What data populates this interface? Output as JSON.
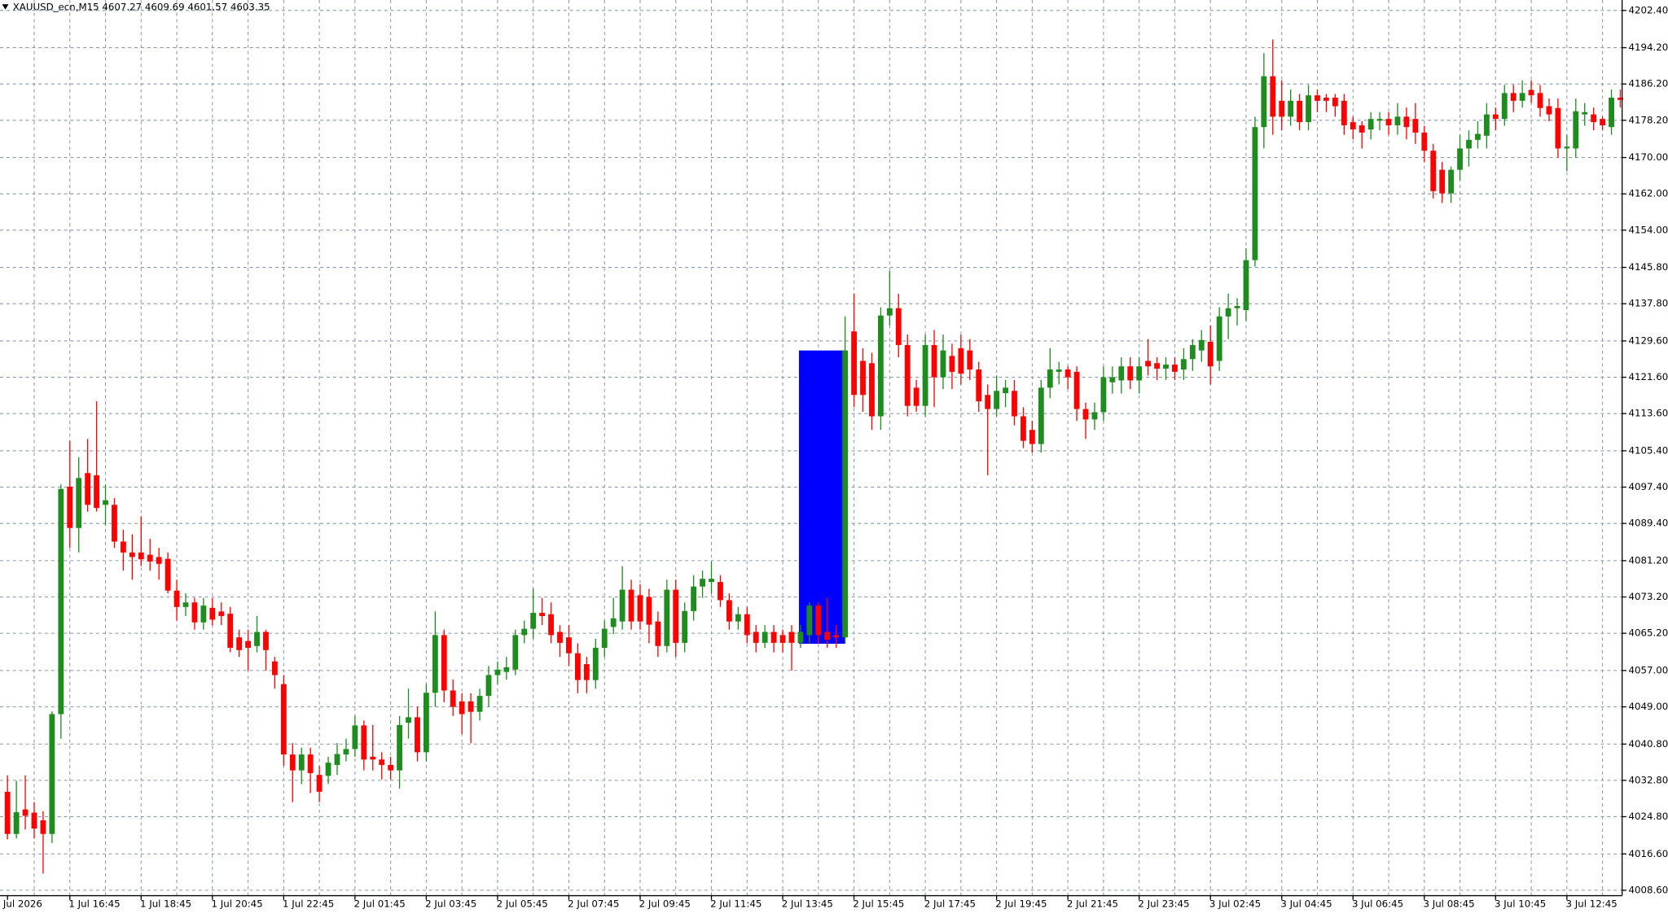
{
  "chart_data": {
    "type": "candlestick",
    "title": "XAUUSD_ecn,M15  4607.27 4609.69 4601.57 4603.35",
    "up_color": "#1e8c1e",
    "down_color": "#ff0000",
    "grid": true,
    "ylim": [
      4007.4,
      4204.7
    ],
    "yticks": [
      {
        "value": 4202.4,
        "label": "4202.40"
      },
      {
        "value": 4194.2,
        "label": "4194.20"
      },
      {
        "value": 4186.2,
        "label": "4186.20"
      },
      {
        "value": 4178.2,
        "label": "4178.20"
      },
      {
        "value": 4170,
        "label": "4170.00"
      },
      {
        "value": 4162,
        "label": "4162.00"
      },
      {
        "value": 4154,
        "label": "4154.00"
      },
      {
        "value": 4145.8,
        "label": "4145.80"
      },
      {
        "value": 4137.8,
        "label": "4137.80"
      },
      {
        "value": 4129.6,
        "label": "4129.60"
      },
      {
        "value": 4121.6,
        "label": "4121.60"
      },
      {
        "value": 4113.6,
        "label": "4113.60"
      },
      {
        "value": 4105.4,
        "label": "4105.40"
      },
      {
        "value": 4097.4,
        "label": "4097.40"
      },
      {
        "value": 4089.4,
        "label": "4089.40"
      },
      {
        "value": 4081.2,
        "label": "4081.20"
      },
      {
        "value": 4073.2,
        "label": "4073.20"
      },
      {
        "value": 4065.2,
        "label": "4065.20"
      },
      {
        "value": 4057,
        "label": "4057.00"
      },
      {
        "value": 4049,
        "label": "4049.00"
      },
      {
        "value": 4040.8,
        "label": "4040.80"
      },
      {
        "value": 4032.8,
        "label": "4032.80"
      },
      {
        "value": 4024.8,
        "label": "4024.80"
      },
      {
        "value": 4016.6,
        "label": "4016.60"
      },
      {
        "value": 4008.6,
        "label": "4008.60"
      }
    ],
    "x": [
      "Jul 2026",
      null,
      null,
      null,
      null,
      null,
      null,
      "1 Jul 16:45",
      null,
      null,
      null,
      null,
      null,
      null,
      null,
      "1 Jul 18:45",
      null,
      null,
      null,
      null,
      null,
      null,
      null,
      "1 Jul 20:45",
      null,
      null,
      null,
      null,
      null,
      null,
      null,
      "1 Jul 22:45",
      null,
      null,
      null,
      null,
      null,
      null,
      null,
      "2 Jul 01:45",
      null,
      null,
      null,
      null,
      null,
      null,
      null,
      "2 Jul 03:45",
      null,
      null,
      null,
      null,
      null,
      null,
      null,
      "2 Jul 05:45",
      null,
      null,
      null,
      null,
      null,
      null,
      null,
      "2 Jul 07:45",
      null,
      null,
      null,
      null,
      null,
      null,
      null,
      "2 Jul 09:45",
      null,
      null,
      null,
      null,
      null,
      null,
      null,
      "2 Jul 11:45",
      null,
      null,
      null,
      null,
      null,
      null,
      null,
      "2 Jul 13:45",
      null,
      null,
      null,
      null,
      null,
      null,
      null,
      "2 Jul 15:45",
      null,
      null,
      null,
      null,
      null,
      null,
      null,
      "2 Jul 17:45",
      null,
      null,
      null,
      null,
      null,
      null,
      null,
      "2 Jul 19:45",
      null,
      null,
      null,
      null,
      null,
      null,
      null,
      "2 Jul 21:45",
      null,
      null,
      null,
      null,
      null,
      null,
      null,
      "2 Jul 23:45",
      null,
      null,
      null,
      null,
      null,
      null,
      null,
      "3 Jul 02:45",
      null,
      null,
      null,
      null,
      null,
      null,
      null,
      "3 Jul 04:45",
      null,
      null,
      null,
      null,
      null,
      null,
      null,
      "3 Jul 06:45",
      null,
      null,
      null,
      null,
      null,
      null,
      null,
      "3 Jul 08:45",
      null,
      null,
      null,
      null,
      null,
      null,
      null,
      "3 Jul 10:45",
      null,
      null,
      null,
      null,
      null,
      null,
      null,
      "3 Jul 12:45",
      null,
      null,
      null,
      null,
      null,
      null
    ],
    "candles": [
      [
        4030.3,
        4033.9,
        4019.8,
        4021
      ],
      [
        4021,
        4032.7,
        4020,
        4025.8
      ],
      [
        4026.4,
        4033.9,
        4022,
        4025
      ],
      [
        4025.7,
        4028,
        4020,
        4022.2
      ],
      [
        4024,
        4026,
        4012.3,
        4021
      ],
      [
        4021,
        4048,
        4019,
        4047.4
      ],
      [
        4047.4,
        4098,
        4042,
        4097
      ],
      [
        4097.5,
        4107.6,
        4084,
        4088.4
      ],
      [
        4088.4,
        4104,
        4083,
        4099.4
      ],
      [
        4100.5,
        4108,
        4092,
        4093.5
      ],
      [
        4100,
        4116.3,
        4092,
        4092.8
      ],
      [
        4093.5,
        4098,
        4089,
        4094.5
      ],
      [
        4093.5,
        4095,
        4084,
        4085.4
      ],
      [
        4085.4,
        4088,
        4079,
        4083
      ],
      [
        4083,
        4087,
        4077,
        4082
      ],
      [
        4083,
        4091,
        4080,
        4081.5
      ],
      [
        4082.5,
        4086,
        4079,
        4081
      ],
      [
        4082,
        4084,
        4077,
        4080.5
      ],
      [
        4081.6,
        4083,
        4074,
        4074.6
      ],
      [
        4074.6,
        4077,
        4068,
        4071
      ],
      [
        4071,
        4074,
        4069,
        4072
      ],
      [
        4072,
        4073,
        4066,
        4067.6
      ],
      [
        4067.6,
        4073,
        4066,
        4071.3
      ],
      [
        4070.8,
        4073,
        4067,
        4068.2
      ],
      [
        4070,
        4072,
        4067,
        4069
      ],
      [
        4069.5,
        4071,
        4061,
        4062
      ],
      [
        4064.3,
        4066,
        4060,
        4061.5
      ],
      [
        4063.5,
        4066,
        4057,
        4062
      ],
      [
        4062.4,
        4069,
        4061,
        4065.5
      ],
      [
        4065.5,
        4066,
        4057,
        4061.5
      ],
      [
        4059,
        4060,
        4053,
        4056
      ],
      [
        4054,
        4056,
        4036,
        4038.5
      ],
      [
        4038.5,
        4041,
        4028,
        4035
      ],
      [
        4035,
        4040,
        4032,
        4038.5
      ],
      [
        4038.5,
        4040,
        4030,
        4034.4
      ],
      [
        4034,
        4036,
        4028,
        4030.3
      ],
      [
        4033.8,
        4038,
        4032,
        4036.7
      ],
      [
        4036.2,
        4041,
        4034,
        4038.6
      ],
      [
        4038.5,
        4042,
        4037,
        4039.7
      ],
      [
        4039.7,
        4047,
        4038,
        4044.9
      ],
      [
        4044.9,
        4046,
        4035,
        4037.4
      ],
      [
        4038,
        4045,
        4035,
        4037.4
      ],
      [
        4037.4,
        4039,
        4033,
        4036.2
      ],
      [
        4036.2,
        4038,
        4033,
        4035
      ],
      [
        4035,
        4047,
        4031,
        4045
      ],
      [
        4045.5,
        4053,
        4042,
        4046.7
      ],
      [
        4046.7,
        4049,
        4037,
        4039
      ],
      [
        4039,
        4054,
        4037,
        4052.1
      ],
      [
        4052.1,
        4070,
        4049,
        4064.8
      ],
      [
        4064.8,
        4066,
        4050,
        4052.6
      ],
      [
        4052.6,
        4055,
        4047,
        4049
      ],
      [
        4050.2,
        4052,
        4043,
        4047.4
      ],
      [
        4050.2,
        4052,
        4041,
        4047.9
      ],
      [
        4047.9,
        4053,
        4046,
        4051.4
      ],
      [
        4051.4,
        4058,
        4049,
        4056
      ],
      [
        4056,
        4059,
        4054,
        4057.2
      ],
      [
        4056.7,
        4060,
        4055,
        4057.7
      ],
      [
        4057.2,
        4066,
        4056,
        4064.8
      ],
      [
        4064.8,
        4068,
        4063,
        4066.2
      ],
      [
        4066.2,
        4075,
        4064,
        4069.7
      ],
      [
        4069.7,
        4073,
        4067,
        4069
      ],
      [
        4069.4,
        4072,
        4063,
        4064.8
      ],
      [
        4065.5,
        4067,
        4060,
        4063.1
      ],
      [
        4064.3,
        4067,
        4058,
        4060.8
      ],
      [
        4060.8,
        4063,
        4052,
        4054.9
      ],
      [
        4058.4,
        4060,
        4052,
        4054.9
      ],
      [
        4054.9,
        4064,
        4053,
        4062
      ],
      [
        4062,
        4068,
        4060,
        4066.2
      ],
      [
        4066.6,
        4073,
        4065,
        4068.5
      ],
      [
        4067.8,
        4080,
        4066,
        4074.8
      ],
      [
        4074.8,
        4077,
        4066,
        4067.8
      ],
      [
        4073.6,
        4076,
        4066,
        4067.8
      ],
      [
        4073.2,
        4075,
        4063,
        4067.1
      ],
      [
        4067.8,
        4070,
        4060,
        4062.4
      ],
      [
        4062.4,
        4077,
        4061,
        4074.8
      ],
      [
        4074.8,
        4077,
        4060,
        4063.1
      ],
      [
        4063.1,
        4072,
        4061,
        4070.1
      ],
      [
        4070.1,
        4078,
        4068,
        4075.5
      ],
      [
        4075.5,
        4079,
        4073,
        4077.2
      ],
      [
        4076.5,
        4081,
        4074,
        4077.2
      ],
      [
        4076.5,
        4078,
        4071,
        4072.5
      ],
      [
        4072.5,
        4074,
        4066,
        4067.8
      ],
      [
        4067.8,
        4071,
        4066,
        4069.4
      ],
      [
        4069.4,
        4071,
        4063,
        4064.8
      ],
      [
        4065.5,
        4067,
        4061,
        4063.1
      ],
      [
        4063.1,
        4067,
        4062,
        4065.5
      ],
      [
        4065.5,
        4067,
        4061,
        4063.1
      ],
      [
        4064.8,
        4066,
        4061,
        4063.1
      ],
      [
        4065.5,
        4067,
        4057,
        4063.1
      ],
      [
        4063.1,
        4067,
        4062,
        4065.5
      ],
      [
        4064.8,
        4072,
        4063,
        4071.3
      ],
      [
        4071.3,
        4072,
        4063,
        4064.8
      ],
      [
        4065.5,
        4073,
        4062,
        4063.8
      ],
      [
        4064.8,
        4067,
        4062,
        4064.3
      ],
      [
        4064.3,
        4135,
        4063,
        4127.5
      ],
      [
        4131.7,
        4140,
        4115,
        4117.7
      ],
      [
        4125.2,
        4128,
        4114,
        4117.7
      ],
      [
        4124.7,
        4127,
        4110,
        4113
      ],
      [
        4113,
        4137,
        4110,
        4135.2
      ],
      [
        4135.2,
        4145,
        4133,
        4136.8
      ],
      [
        4136.8,
        4140,
        4126,
        4128.7
      ],
      [
        4128.7,
        4131,
        4113,
        4115.3
      ],
      [
        4119.3,
        4121,
        4114,
        4115.3
      ],
      [
        4115.3,
        4131,
        4113,
        4128.7
      ],
      [
        4128.7,
        4132,
        4115,
        4121.6
      ],
      [
        4121.6,
        4131,
        4119,
        4127.5
      ],
      [
        4126.3,
        4129,
        4119,
        4122.8
      ],
      [
        4128,
        4131,
        4120,
        4122.4
      ],
      [
        4127.5,
        4130,
        4121,
        4123.3
      ],
      [
        4123.3,
        4125,
        4114,
        4116.3
      ],
      [
        4117.7,
        4120,
        4100,
        4114.6
      ],
      [
        4114.6,
        4122,
        4113,
        4118.6
      ],
      [
        4118.1,
        4121,
        4115,
        4119.3
      ],
      [
        4118.6,
        4121,
        4111,
        4113
      ],
      [
        4113,
        4115,
        4106,
        4107.6
      ],
      [
        4110,
        4112,
        4105,
        4106.9
      ],
      [
        4106.9,
        4121,
        4105,
        4119.3
      ],
      [
        4119.3,
        4128,
        4117,
        4123.3
      ],
      [
        4122.8,
        4125,
        4120,
        4123.3
      ],
      [
        4123.3,
        4124,
        4119,
        4121.6
      ],
      [
        4122.8,
        4124,
        4112,
        4114.6
      ],
      [
        4114.6,
        4116,
        4108,
        4112.3
      ],
      [
        4112.3,
        4116,
        4110,
        4113.9
      ],
      [
        4113.9,
        4124,
        4112,
        4121.6
      ],
      [
        4120.5,
        4124,
        4118,
        4121.6
      ],
      [
        4120.9,
        4126,
        4118,
        4124
      ],
      [
        4124,
        4126,
        4119,
        4120.9
      ],
      [
        4120.9,
        4126,
        4118,
        4124
      ],
      [
        4125.2,
        4130,
        4122,
        4124
      ],
      [
        4124.7,
        4126,
        4121,
        4123.5
      ],
      [
        4123.5,
        4126,
        4121,
        4124.4
      ],
      [
        4124.4,
        4126,
        4121,
        4122.8
      ],
      [
        4123.3,
        4128,
        4121,
        4125.6
      ],
      [
        4125.6,
        4130,
        4123,
        4128.7
      ],
      [
        4127.5,
        4132,
        4125,
        4129.8
      ],
      [
        4129.4,
        4133,
        4120,
        4124
      ],
      [
        4125.2,
        4137,
        4123,
        4135
      ],
      [
        4135,
        4140,
        4130,
        4136.8
      ],
      [
        4136.8,
        4139,
        4133,
        4137.3
      ],
      [
        4136.4,
        4150,
        4134,
        4147.4
      ],
      [
        4147.4,
        4179,
        4146,
        4176.7
      ],
      [
        4176.7,
        4193,
        4172,
        4187.9
      ],
      [
        4187.9,
        4196,
        4175,
        4179
      ],
      [
        4182.5,
        4187,
        4176,
        4179
      ],
      [
        4179,
        4185,
        4177,
        4182.5
      ],
      [
        4182.5,
        4184,
        4176,
        4177.8
      ],
      [
        4177.8,
        4186,
        4176,
        4183.7
      ],
      [
        4183.7,
        4185,
        4180,
        4182.5
      ],
      [
        4183.2,
        4184,
        4180,
        4182.5
      ],
      [
        4183.2,
        4184,
        4179,
        4181.3
      ],
      [
        4182.5,
        4184,
        4175,
        4177.1
      ],
      [
        4177.8,
        4179,
        4174,
        4176.2
      ],
      [
        4177.1,
        4178,
        4172,
        4175.5
      ],
      [
        4176.2,
        4180,
        4174,
        4178.5
      ],
      [
        4178.1,
        4180,
        4176,
        4178.5
      ],
      [
        4178.5,
        4180,
        4175,
        4177.1
      ],
      [
        4177.1,
        4182,
        4175,
        4179
      ],
      [
        4179,
        4181,
        4174,
        4176.7
      ],
      [
        4178.5,
        4182,
        4173,
        4175.5
      ],
      [
        4175.5,
        4177,
        4169,
        4171.5
      ],
      [
        4171.5,
        4173,
        4161,
        4162.6
      ],
      [
        4167.3,
        4169,
        4160,
        4162.1
      ],
      [
        4162.1,
        4168,
        4160,
        4167.3
      ],
      [
        4167.3,
        4175,
        4165,
        4172
      ],
      [
        4172,
        4176,
        4168,
        4173.9
      ],
      [
        4173.9,
        4178,
        4172,
        4175.2
      ],
      [
        4174.8,
        4182,
        4172,
        4179.5
      ],
      [
        4179.5,
        4181,
        4176,
        4178.5
      ],
      [
        4178.5,
        4186,
        4177,
        4184.2
      ],
      [
        4184.2,
        4186,
        4180,
        4182.5
      ],
      [
        4182.5,
        4187,
        4181,
        4184.2
      ],
      [
        4184.9,
        4187,
        4182,
        4183.7
      ],
      [
        4184.2,
        4186,
        4179,
        4180.9
      ],
      [
        4181.3,
        4183,
        4178,
        4179.5
      ],
      [
        4180.9,
        4183,
        4170,
        4172
      ],
      [
        4172,
        4175,
        4167,
        4172.4
      ],
      [
        4172,
        4183,
        4170,
        4180.2
      ],
      [
        4179.5,
        4182,
        4177,
        4180
      ],
      [
        4179.5,
        4181,
        4176,
        4177.8
      ],
      [
        4178.5,
        4179,
        4176,
        4177.1
      ],
      [
        4176.7,
        4185,
        4175,
        4183.2
      ],
      [
        4183.2,
        4185,
        4181,
        4182.7
      ]
    ],
    "rectangle": {
      "color": "#0000ff",
      "candle_range": [
        89,
        94
      ],
      "price_range": [
        4062.9,
        4127.5
      ]
    }
  }
}
